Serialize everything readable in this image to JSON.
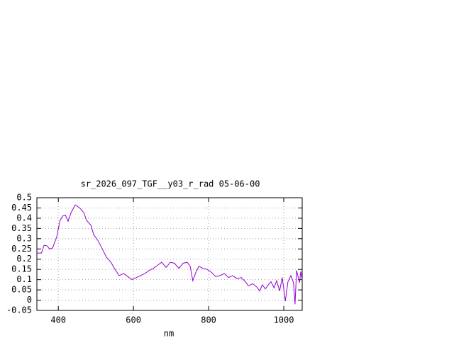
{
  "chart_data": {
    "type": "line",
    "title": "sr_2026_097_TGF__y03_r_rad 05-06-00",
    "x_label": "nm",
    "x": [
      343,
      355,
      362,
      370,
      377,
      385,
      396,
      404,
      411,
      419,
      426,
      434,
      445,
      457,
      468,
      475,
      487,
      494,
      506,
      517,
      528,
      540,
      551,
      562,
      574,
      585,
      596,
      608,
      619,
      630,
      642,
      653,
      664,
      675,
      687,
      698,
      709,
      721,
      732,
      743,
      751,
      758,
      766,
      774,
      785,
      796,
      808,
      819,
      830,
      842,
      853,
      864,
      876,
      887,
      898,
      906,
      917,
      928,
      936,
      943,
      951,
      959,
      966,
      974,
      981,
      989,
      996,
      1004,
      1011,
      1019,
      1026,
      1030,
      1034,
      1042,
      1045,
      1049
    ],
    "series": [
      {
        "color": "#9400d3",
        "values": [
          0.23,
          0.23,
          0.268,
          0.265,
          0.25,
          0.255,
          0.31,
          0.385,
          0.41,
          0.415,
          0.385,
          0.427,
          0.465,
          0.45,
          0.427,
          0.39,
          0.365,
          0.32,
          0.29,
          0.25,
          0.21,
          0.185,
          0.15,
          0.12,
          0.13,
          0.115,
          0.1,
          0.11,
          0.12,
          0.13,
          0.145,
          0.155,
          0.17,
          0.185,
          0.16,
          0.185,
          0.18,
          0.155,
          0.18,
          0.185,
          0.165,
          0.095,
          0.135,
          0.165,
          0.155,
          0.15,
          0.135,
          0.115,
          0.12,
          0.13,
          0.11,
          0.12,
          0.105,
          0.11,
          0.09,
          0.07,
          0.08,
          0.065,
          0.045,
          0.075,
          0.055,
          0.075,
          0.09,
          0.06,
          0.095,
          0.045,
          0.11,
          -0.005,
          0.09,
          0.12,
          0.085,
          -0.02,
          0.145,
          0.085,
          0.14,
          0.1
        ]
      }
    ],
    "xlim": [
      343,
      1049
    ],
    "xticks": [
      400,
      600,
      800,
      1000
    ],
    "ylim": [
      -0.05,
      0.5
    ],
    "yticks": [
      0.5,
      0.45,
      0.4,
      0.35,
      0.3,
      0.25,
      0.2,
      0.15,
      0.1,
      0.05,
      0,
      -0.05
    ],
    "grid": true
  }
}
